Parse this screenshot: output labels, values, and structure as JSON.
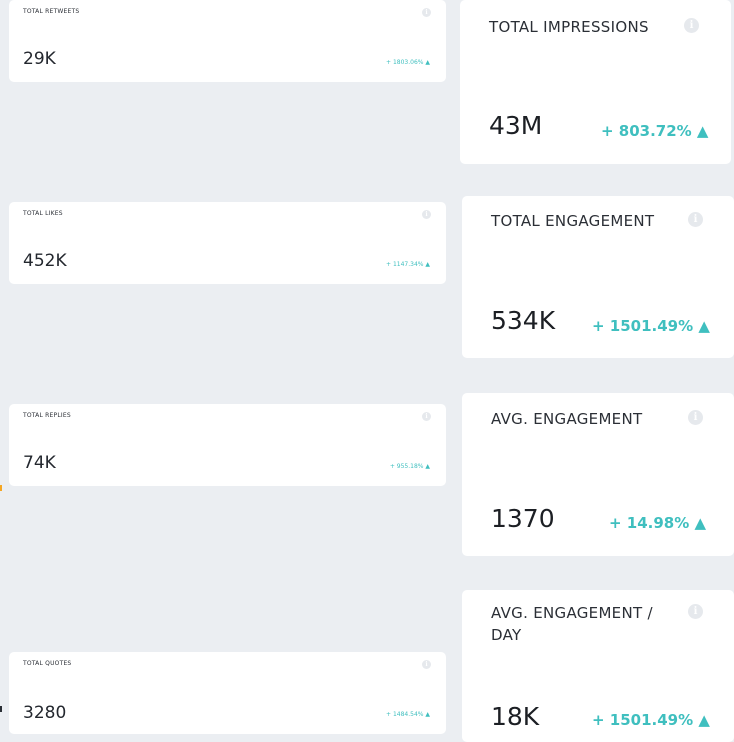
{
  "small_cards": [
    {
      "title": "TOTAL RETWEETS",
      "value": "29K",
      "change": "+ 1803.06% ▲"
    },
    {
      "title": "TOTAL LIKES",
      "value": "452K",
      "change": "+ 1147.34% ▲"
    },
    {
      "title": "TOTAL REPLIES",
      "value": "74K",
      "change": "+ 955.18% ▲"
    },
    {
      "title": "TOTAL QUOTES",
      "value": "3280",
      "change": "+ 1484.54% ▲"
    }
  ],
  "large_cards": [
    {
      "title": "TOTAL IMPRESSIONS",
      "value": "43M",
      "change": "+ 803.72% ▲"
    },
    {
      "title": "TOTAL ENGAGEMENT",
      "value": "534K",
      "change": "+ 1501.49% ▲"
    },
    {
      "title": "AVG. ENGAGEMENT",
      "value": "1370",
      "change": "+ 14.98% ▲"
    },
    {
      "title": "AVG. ENGAGEMENT / DAY",
      "value": "18K",
      "change": "+ 1501.49% ▲"
    }
  ],
  "info_icon": "info-icon",
  "colors": {
    "accent": "#3fbfbf",
    "background": "#ebeef2",
    "card": "#ffffff"
  }
}
